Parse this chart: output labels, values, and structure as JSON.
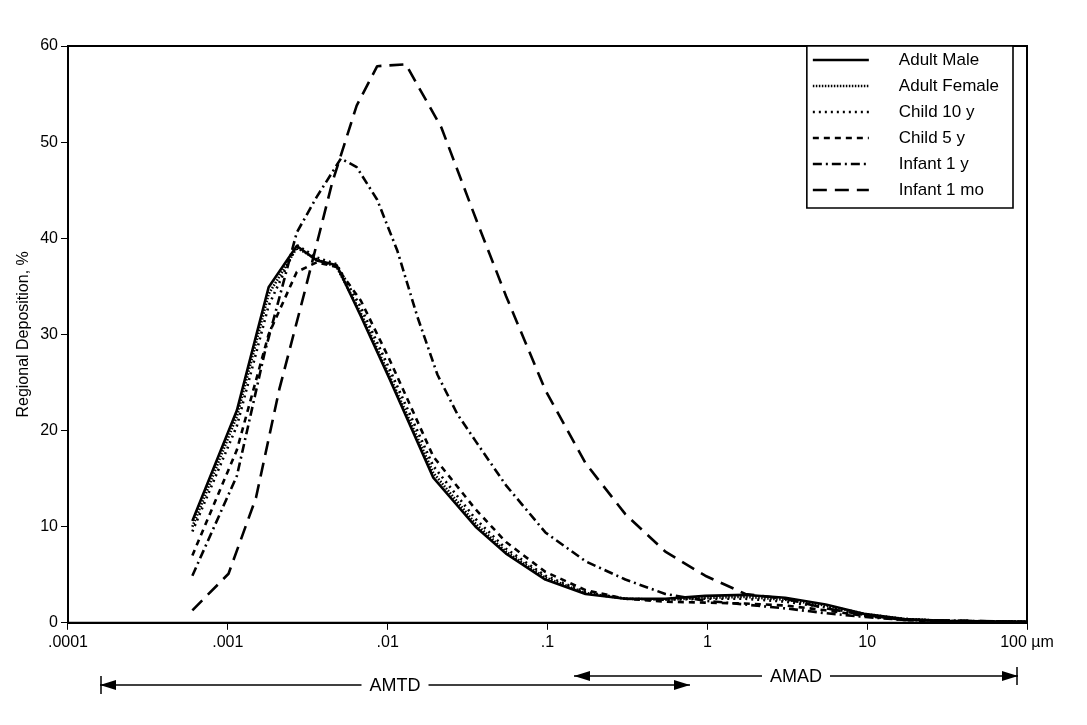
{
  "chart_data": {
    "type": "line",
    "ylabel": "Regional Deposition, %",
    "log": "x",
    "xlim": [
      0.0001,
      100
    ],
    "xticks": [
      {
        "value": 0.0001,
        "label": ".0001"
      },
      {
        "value": 0.001,
        "label": ".001"
      },
      {
        "value": 0.01,
        "label": ".01"
      },
      {
        "value": 0.1,
        "label": ".1"
      },
      {
        "value": 1,
        "label": "1"
      },
      {
        "value": 10,
        "label": "10"
      },
      {
        "value": 100,
        "label": "100 µm"
      }
    ],
    "ylim": [
      0,
      60
    ],
    "yticks": [
      0,
      10,
      20,
      30,
      40,
      50,
      60
    ],
    "grid": false,
    "legend": "top right",
    "marker": "none",
    "annotations": [
      "AMTD",
      "AMAD"
    ],
    "series": [
      {
        "name": "Adult Male",
        "color": "#000000",
        "line_style": "solid",
        "x": [
          0.0006,
          0.00114,
          0.0018,
          0.0027,
          0.0036,
          0.0048,
          0.0068,
          0.0102,
          0.0193,
          0.0355,
          0.055,
          0.097,
          0.173,
          0.307,
          0.546,
          0.97,
          1.73,
          3.07,
          5.5,
          9.8,
          17,
          30,
          100
        ],
        "values": [
          10.6,
          22.1,
          34.9,
          39.2,
          37.7,
          37.2,
          31.9,
          25.5,
          15.1,
          10.0,
          7.2,
          4.5,
          3.0,
          2.5,
          2.5,
          2.8,
          2.9,
          2.6,
          1.9,
          0.9,
          0.4,
          0.2,
          0.1
        ]
      },
      {
        "name": "Adult Female",
        "color": "#000000",
        "line_style": "densely_dotted",
        "x": [
          0.0006,
          0.00114,
          0.0018,
          0.0027,
          0.0036,
          0.0048,
          0.0068,
          0.0102,
          0.0193,
          0.0355,
          0.055,
          0.097,
          0.173,
          0.307,
          0.546,
          0.97,
          1.73,
          3.07,
          5.5,
          9.8,
          17,
          30,
          100
        ],
        "values": [
          10.0,
          21.5,
          34.2,
          39.0,
          37.8,
          37.0,
          32.2,
          25.8,
          15.6,
          10.3,
          7.4,
          4.7,
          3.1,
          2.5,
          2.4,
          2.6,
          2.7,
          2.4,
          1.8,
          0.9,
          0.4,
          0.2,
          0.1
        ]
      },
      {
        "name": "Child 10 y",
        "color": "#000000",
        "line_style": "dotted",
        "x": [
          0.0006,
          0.00114,
          0.0018,
          0.0027,
          0.0036,
          0.0048,
          0.0068,
          0.0102,
          0.0193,
          0.0355,
          0.055,
          0.097,
          0.173,
          0.307,
          0.546,
          0.97,
          1.73,
          3.07,
          5.5,
          9.8,
          17,
          30,
          100
        ],
        "values": [
          9.5,
          20.5,
          33.0,
          39.3,
          38.0,
          37.3,
          32.8,
          26.5,
          16.3,
          10.8,
          7.7,
          4.9,
          3.2,
          2.5,
          2.4,
          2.5,
          2.5,
          2.2,
          1.6,
          0.8,
          0.4,
          0.2,
          0.1
        ]
      },
      {
        "name": "Child 5 y",
        "color": "#000000",
        "line_style": "dashed",
        "x": [
          0.0006,
          0.00114,
          0.0018,
          0.0027,
          0.0036,
          0.0048,
          0.0068,
          0.0102,
          0.0193,
          0.0355,
          0.055,
          0.097,
          0.173,
          0.307,
          0.546,
          0.97,
          1.73,
          3.07,
          5.5,
          9.8,
          17,
          30,
          100
        ],
        "values": [
          7.0,
          18.0,
          30.0,
          36.5,
          37.5,
          37.0,
          33.5,
          27.5,
          17.3,
          11.8,
          8.4,
          5.3,
          3.4,
          2.5,
          2.2,
          2.1,
          2.0,
          1.8,
          1.3,
          0.7,
          0.3,
          0.1,
          0.1
        ]
      },
      {
        "name": "Infant 1 y",
        "color": "#000000",
        "line_style": "dashdot",
        "x": [
          0.0006,
          0.00114,
          0.0017,
          0.0027,
          0.0036,
          0.0051,
          0.0064,
          0.0086,
          0.0115,
          0.0153,
          0.0205,
          0.0273,
          0.0355,
          0.055,
          0.097,
          0.173,
          0.307,
          0.546,
          0.97,
          1.73,
          3.07,
          5.5,
          9.8,
          17,
          100
        ],
        "values": [
          4.9,
          15.3,
          28.1,
          40.6,
          44.3,
          48.3,
          47.4,
          44.0,
          38.7,
          31.9,
          25.8,
          21.7,
          18.9,
          14.3,
          9.4,
          6.4,
          4.5,
          3.0,
          2.3,
          1.9,
          1.5,
          1.0,
          0.6,
          0.3,
          0.1
        ]
      },
      {
        "name": "Infant 1 mo",
        "color": "#000000",
        "line_style": "long_dashed",
        "x": [
          0.0006,
          0.00101,
          0.0015,
          0.0021,
          0.003,
          0.0045,
          0.0064,
          0.0086,
          0.013,
          0.0217,
          0.0355,
          0.055,
          0.097,
          0.173,
          0.307,
          0.546,
          0.97,
          1.73,
          3.07,
          5.5,
          9.8,
          17,
          100
        ],
        "values": [
          1.3,
          5.1,
          13.0,
          24.3,
          34.2,
          45.8,
          53.8,
          57.9,
          58.1,
          51.5,
          42.1,
          34.0,
          24.2,
          16.6,
          11.3,
          7.4,
          4.9,
          3.0,
          2.5,
          1.5,
          0.8,
          0.3,
          0.1
        ]
      }
    ]
  }
}
